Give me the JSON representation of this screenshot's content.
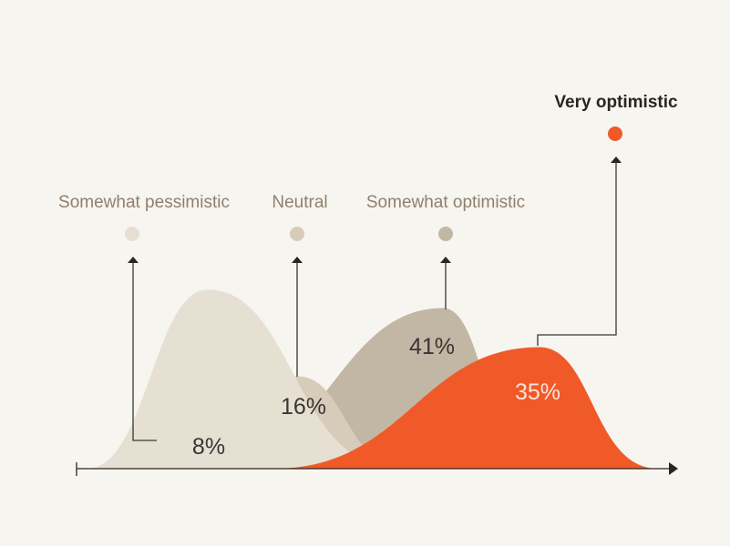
{
  "chart_data": {
    "type": "area",
    "title": "",
    "xlabel": "",
    "ylabel": "",
    "categories": [
      "Somewhat pessimistic",
      "Neutral",
      "Somewhat optimistic",
      "Very optimistic"
    ],
    "values": [
      8,
      16,
      41,
      35
    ],
    "value_labels": [
      "8%",
      "16%",
      "41%",
      "35%"
    ],
    "highlighted_category": "Very optimistic",
    "colors": {
      "Somewhat pessimistic": "#e6e0d3",
      "Neutral": "#d7ccba",
      "Somewhat optimistic": "#c2b7a5",
      "Very optimistic": "#f05a28"
    },
    "background": "#f7f5f0",
    "axis_color": "#2b2422",
    "grid": false,
    "legend": "none"
  }
}
